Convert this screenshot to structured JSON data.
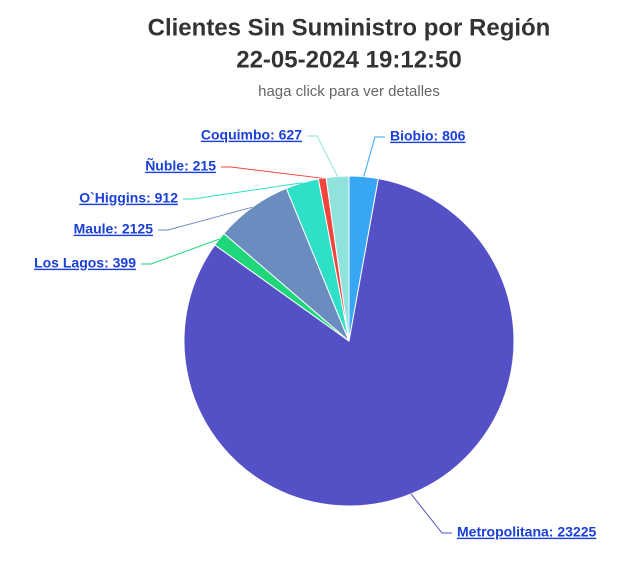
{
  "chart_data": {
    "type": "pie",
    "title": [
      "Clientes Sin Suministro por Región",
      "22-05-2024 19:12:50"
    ],
    "subtitle": "haga click para ver detalles",
    "categories": [
      "Biobio",
      "Metropolitana",
      "Los Lagos",
      "Maule",
      "O`Higgins",
      "Ñuble",
      "Coquimbo"
    ],
    "values": [
      806,
      23225,
      399,
      2125,
      912,
      215,
      627
    ],
    "value_labels": [
      "Biobio: 806",
      "Metropolitana: 23225",
      "Los Lagos: 399",
      "Maule: 2125",
      "O`Higgins: 912",
      "Ñuble: 215",
      "Coquimbo: 627"
    ],
    "colors": [
      "#36a6f5",
      "#5450c6",
      "#1fd67a",
      "#6b8cbf",
      "#2fe0c8",
      "#f0443c",
      "#90e3dd"
    ]
  }
}
